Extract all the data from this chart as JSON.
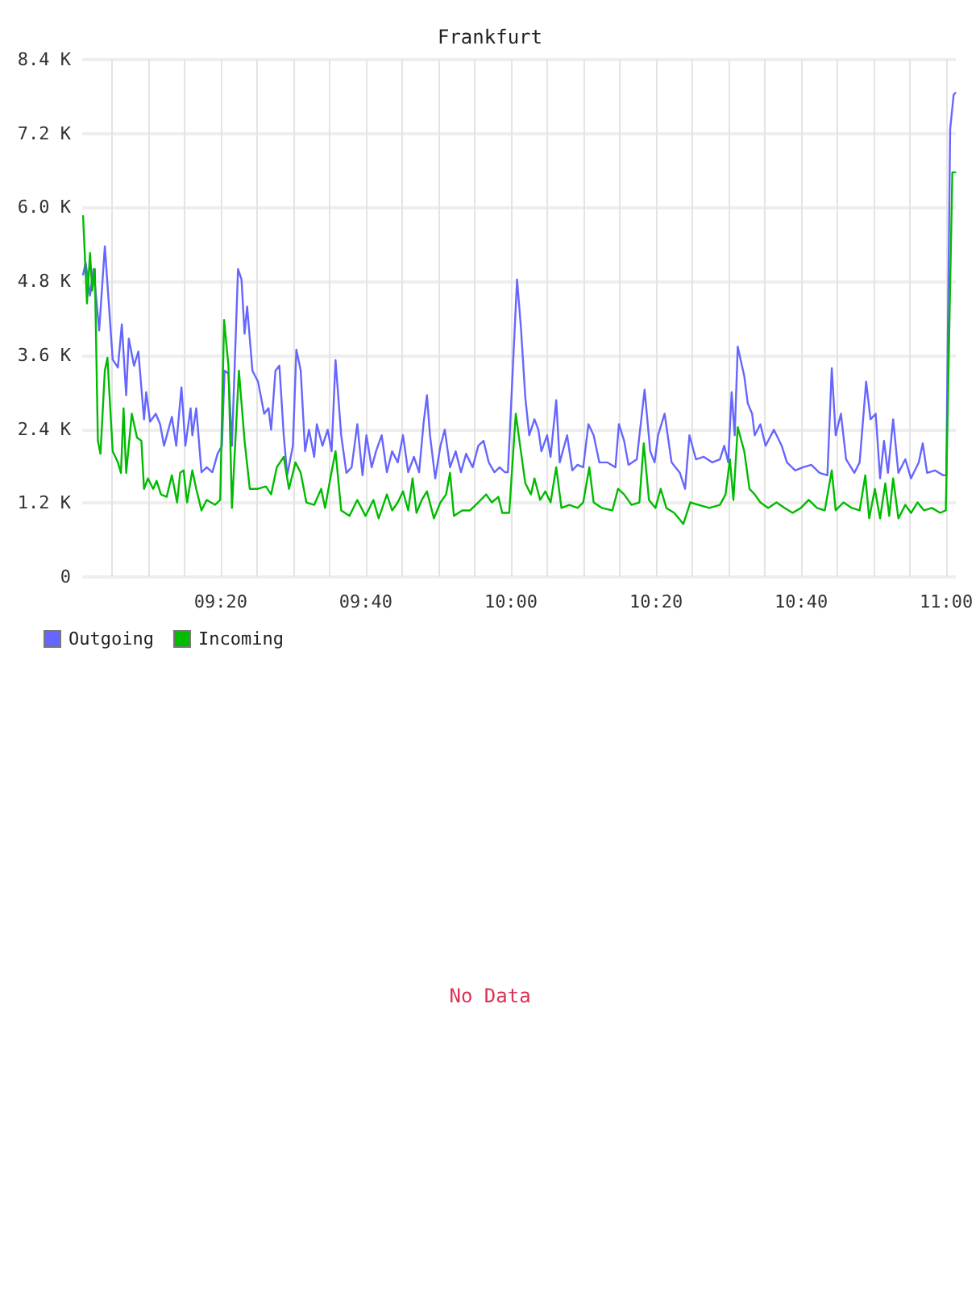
{
  "chart_data": {
    "type": "line",
    "title": "Frankfurt",
    "xlim": [
      9.015,
      11.022
    ],
    "xticks": [
      {
        "value": 9.0833,
        "label": null
      },
      {
        "value": 9.1667,
        "label": null
      },
      {
        "value": 9.25,
        "label": null
      },
      {
        "value": 9.3333,
        "label": "09:20"
      },
      {
        "value": 9.4167,
        "label": null
      },
      {
        "value": 9.5,
        "label": null
      },
      {
        "value": 9.5833,
        "label": null
      },
      {
        "value": 9.6667,
        "label": "09:40"
      },
      {
        "value": 9.75,
        "label": null
      },
      {
        "value": 9.8333,
        "label": null
      },
      {
        "value": 9.9167,
        "label": null
      },
      {
        "value": 10,
        "label": "10:00"
      },
      {
        "value": 10.0833,
        "label": null
      },
      {
        "value": 10.1667,
        "label": null
      },
      {
        "value": 10.25,
        "label": null
      },
      {
        "value": 10.3333,
        "label": "10:20"
      },
      {
        "value": 10.4167,
        "label": null
      },
      {
        "value": 10.5,
        "label": null
      },
      {
        "value": 10.5833,
        "label": null
      },
      {
        "value": 10.6667,
        "label": "10:40"
      },
      {
        "value": 10.75,
        "label": null
      },
      {
        "value": 10.8333,
        "label": null
      },
      {
        "value": 10.9167,
        "label": null
      },
      {
        "value": 11,
        "label": "11:00"
      }
    ],
    "ylim": [
      0,
      8400
    ],
    "yticks": [
      0,
      {
        "value": 1200,
        "label": "1.2 K"
      },
      {
        "value": 2400,
        "label": "2.4 K"
      },
      {
        "value": 3600,
        "label": "3.6 K"
      },
      {
        "value": 4800,
        "label": "4.8 K"
      },
      {
        "value": 6000,
        "label": "6.0 K"
      },
      {
        "value": 7200,
        "label": "7.2 K"
      },
      {
        "value": 8400,
        "label": "8.4 K"
      }
    ],
    "grid": true,
    "legend": "bottom left",
    "annotations": [
      "No Data"
    ],
    "series": [
      {
        "name": "Outgoing",
        "color": "#6666ff",
        "x": [
          9.017,
          9.023,
          9.033,
          9.041,
          9.054,
          9.067,
          9.085,
          9.097,
          9.106,
          9.116,
          9.122,
          9.134,
          9.144,
          9.157,
          9.162,
          9.171,
          9.184,
          9.194,
          9.203,
          9.221,
          9.231,
          9.243,
          9.252,
          9.264,
          9.268,
          9.277,
          9.289,
          9.301,
          9.314,
          9.326,
          9.336,
          9.342,
          9.351,
          9.359,
          9.373,
          9.381,
          9.388,
          9.394,
          9.406,
          9.419,
          9.433,
          9.443,
          9.449,
          9.459,
          9.468,
          9.478,
          9.486,
          9.499,
          9.507,
          9.517,
          9.527,
          9.536,
          9.548,
          9.554,
          9.567,
          9.579,
          9.588,
          9.597,
          9.61,
          9.622,
          9.634,
          9.647,
          9.659,
          9.668,
          9.68,
          9.69,
          9.703,
          9.715,
          9.727,
          9.74,
          9.752,
          9.764,
          9.777,
          9.789,
          9.799,
          9.807,
          9.814,
          9.826,
          9.838,
          9.848,
          9.86,
          9.873,
          9.885,
          9.897,
          9.912,
          9.925,
          9.937,
          9.949,
          9.962,
          9.974,
          9.986,
          9.993,
          10.014,
          10.023,
          10.033,
          10.042,
          10.054,
          10.063,
          10.07,
          10.083,
          10.091,
          10.104,
          10.112,
          10.129,
          10.141,
          10.153,
          10.166,
          10.178,
          10.19,
          10.203,
          10.221,
          10.24,
          10.248,
          10.26,
          10.27,
          10.289,
          10.307,
          10.32,
          10.33,
          10.338,
          10.353,
          10.369,
          10.388,
          10.4,
          10.41,
          10.425,
          10.443,
          10.462,
          10.48,
          10.49,
          10.499,
          10.507,
          10.514,
          10.521,
          10.536,
          10.544,
          10.554,
          10.56,
          10.573,
          10.585,
          10.604,
          10.622,
          10.634,
          10.653,
          10.671,
          10.69,
          10.709,
          10.727,
          10.737,
          10.746,
          10.758,
          10.77,
          10.789,
          10.801,
          10.816,
          10.826,
          10.838,
          10.848,
          10.857,
          10.866,
          10.878,
          10.89,
          10.906,
          10.919,
          10.937,
          10.946,
          10.956,
          10.974,
          10.993,
          11.0,
          11.009,
          11.017,
          11.021
        ],
        "values": [
          4910,
          5100,
          4570,
          5000,
          4000,
          5370,
          3530,
          3400,
          4100,
          2950,
          3870,
          3430,
          3660,
          2560,
          3000,
          2520,
          2650,
          2480,
          2130,
          2600,
          2130,
          3080,
          2130,
          2740,
          2300,
          2740,
          1700,
          1780,
          1700,
          2000,
          2130,
          3350,
          3300,
          2130,
          5000,
          4830,
          3950,
          4390,
          3350,
          3170,
          2650,
          2740,
          2390,
          3350,
          3430,
          2300,
          1650,
          2130,
          3690,
          3350,
          2040,
          2390,
          1950,
          2480,
          2130,
          2390,
          2040,
          3520,
          2300,
          1690,
          1780,
          2480,
          1650,
          2300,
          1780,
          2040,
          2300,
          1700,
          2040,
          1860,
          2300,
          1700,
          1950,
          1700,
          2480,
          2950,
          2300,
          1600,
          2130,
          2390,
          1780,
          2040,
          1700,
          2000,
          1780,
          2130,
          2210,
          1860,
          1700,
          1780,
          1700,
          1700,
          4830,
          4040,
          2910,
          2300,
          2560,
          2390,
          2040,
          2300,
          1950,
          2870,
          1860,
          2300,
          1730,
          1820,
          1780,
          2480,
          2300,
          1860,
          1860,
          1780,
          2480,
          2210,
          1820,
          1910,
          3040,
          2040,
          1860,
          2300,
          2650,
          1860,
          1690,
          1430,
          2300,
          1910,
          1950,
          1860,
          1910,
          2130,
          1860,
          3000,
          2300,
          3740,
          3260,
          2820,
          2650,
          2300,
          2480,
          2130,
          2390,
          2130,
          1860,
          1730,
          1780,
          1820,
          1690,
          1650,
          3390,
          2300,
          2650,
          1910,
          1690,
          1860,
          3170,
          2560,
          2650,
          1600,
          2210,
          1690,
          2560,
          1690,
          1910,
          1600,
          1860,
          2170,
          1690,
          1730,
          1650,
          1650,
          7270,
          7830,
          7860
        ]
      },
      {
        "name": "Incoming",
        "color": "#00bb00",
        "x": [
          9.017,
          9.026,
          9.033,
          9.038,
          9.044,
          9.051,
          9.057,
          9.067,
          9.073,
          9.085,
          9.097,
          9.104,
          9.11,
          9.116,
          9.129,
          9.141,
          9.151,
          9.157,
          9.166,
          9.178,
          9.186,
          9.196,
          9.209,
          9.221,
          9.233,
          9.24,
          9.248,
          9.256,
          9.268,
          9.277,
          9.289,
          9.301,
          9.32,
          9.332,
          9.341,
          9.351,
          9.359,
          9.375,
          9.388,
          9.4,
          9.419,
          9.437,
          9.449,
          9.462,
          9.478,
          9.49,
          9.505,
          9.517,
          9.53,
          9.548,
          9.564,
          9.573,
          9.585,
          9.597,
          9.61,
          9.629,
          9.647,
          9.666,
          9.684,
          9.696,
          9.715,
          9.727,
          9.74,
          9.752,
          9.764,
          9.774,
          9.783,
          9.795,
          9.807,
          9.823,
          9.838,
          9.851,
          9.86,
          9.869,
          9.888,
          9.906,
          9.925,
          9.943,
          9.956,
          9.971,
          9.98,
          9.996,
          10.011,
          10.021,
          10.033,
          10.046,
          10.054,
          10.067,
          10.079,
          10.091,
          10.104,
          10.116,
          10.134,
          10.153,
          10.166,
          10.18,
          10.19,
          10.209,
          10.233,
          10.246,
          10.26,
          10.277,
          10.295,
          10.305,
          10.317,
          10.332,
          10.344,
          10.357,
          10.375,
          10.396,
          10.412,
          10.431,
          10.456,
          10.48,
          10.493,
          10.503,
          10.511,
          10.521,
          10.536,
          10.548,
          10.56,
          10.573,
          10.591,
          10.61,
          10.629,
          10.647,
          10.666,
          10.684,
          10.703,
          10.721,
          10.737,
          10.746,
          10.764,
          10.783,
          10.801,
          10.814,
          10.823,
          10.836,
          10.848,
          10.86,
          10.869,
          10.878,
          10.89,
          10.906,
          10.919,
          10.934,
          10.949,
          10.967,
          10.986,
          10.999,
          11.014,
          11.021
        ],
        "values": [
          5860,
          4440,
          5260,
          4650,
          5000,
          2210,
          2000,
          3350,
          3560,
          2040,
          1860,
          1690,
          2740,
          1690,
          2650,
          2260,
          2210,
          1430,
          1600,
          1430,
          1560,
          1340,
          1300,
          1650,
          1210,
          1690,
          1730,
          1210,
          1730,
          1430,
          1080,
          1250,
          1170,
          1250,
          4170,
          3430,
          1120,
          3350,
          2210,
          1430,
          1430,
          1470,
          1340,
          1780,
          1950,
          1430,
          1860,
          1690,
          1210,
          1170,
          1430,
          1120,
          1600,
          2040,
          1080,
          990,
          1250,
          990,
          1250,
          950,
          1340,
          1080,
          1210,
          1390,
          1080,
          1600,
          1040,
          1250,
          1390,
          950,
          1210,
          1340,
          1690,
          990,
          1080,
          1080,
          1210,
          1340,
          1210,
          1300,
          1040,
          1040,
          2650,
          2130,
          1520,
          1340,
          1600,
          1250,
          1390,
          1210,
          1780,
          1120,
          1170,
          1120,
          1210,
          1780,
          1210,
          1120,
          1080,
          1430,
          1340,
          1170,
          1210,
          2170,
          1250,
          1120,
          1430,
          1120,
          1040,
          860,
          1210,
          1170,
          1120,
          1170,
          1340,
          1910,
          1250,
          2430,
          2040,
          1430,
          1340,
          1210,
          1120,
          1210,
          1120,
          1040,
          1120,
          1250,
          1120,
          1080,
          1730,
          1080,
          1210,
          1120,
          1080,
          1650,
          950,
          1430,
          950,
          1520,
          990,
          1600,
          950,
          1170,
          1040,
          1210,
          1080,
          1120,
          1040,
          1080,
          6570,
          6570
        ]
      }
    ]
  }
}
